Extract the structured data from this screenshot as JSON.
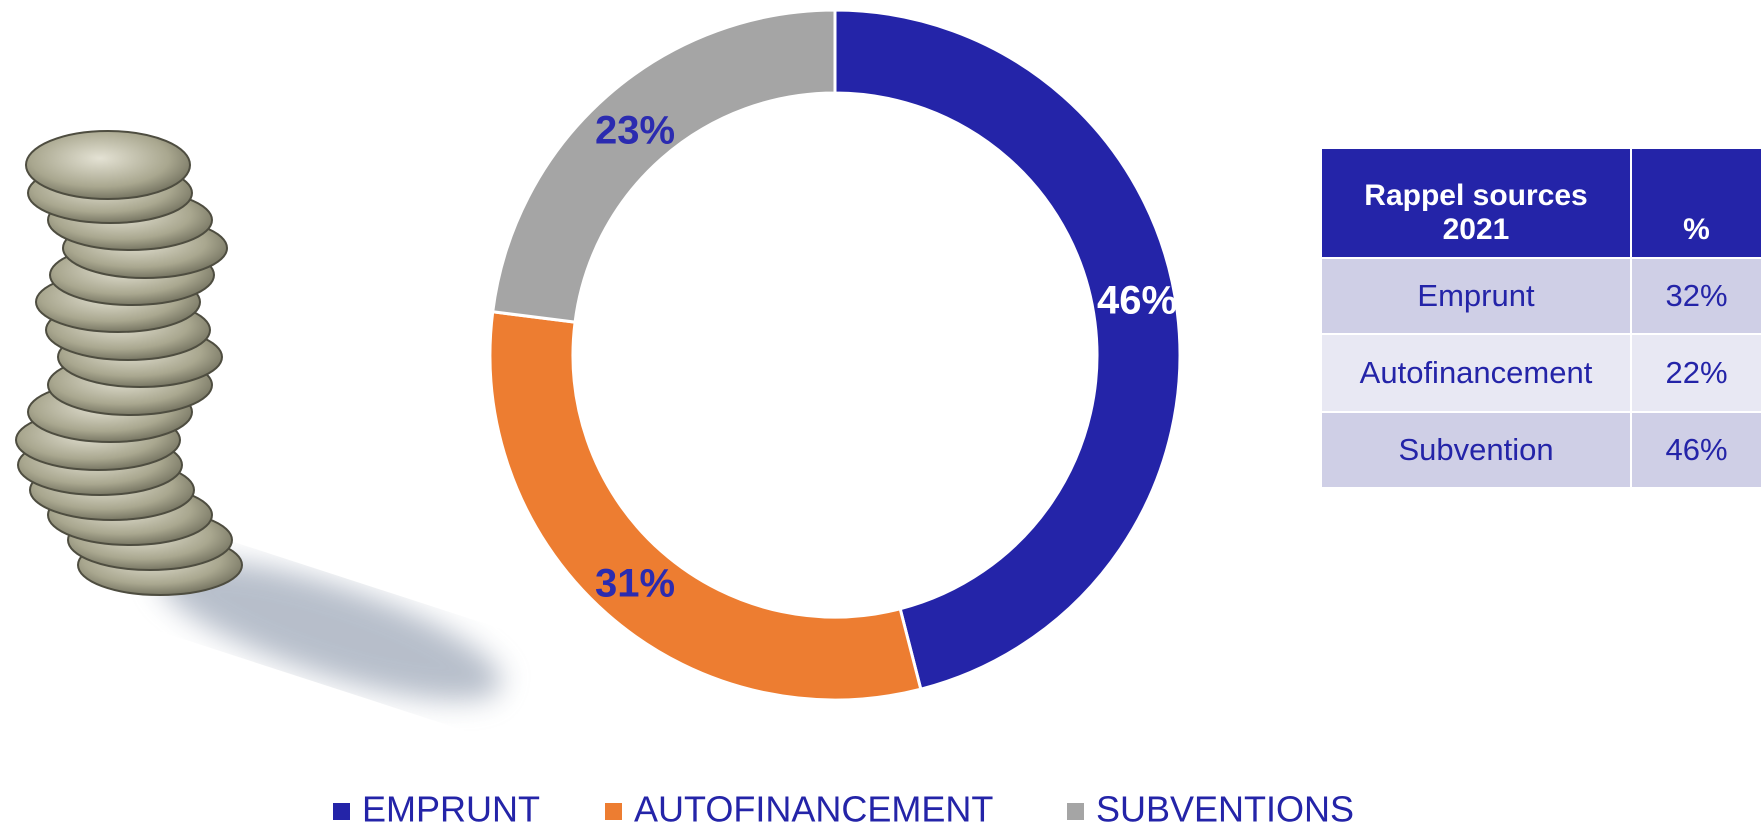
{
  "chart_data": {
    "type": "donut",
    "categories": [
      "EMPRUNT",
      "AUTOFINANCEMENT",
      "SUBVENTIONS"
    ],
    "values": [
      46,
      31,
      23
    ],
    "value_labels": [
      "46%",
      "31%",
      "23%"
    ],
    "colors": [
      "#2424a8",
      "#ed7d31",
      "#a5a5a5"
    ],
    "label_colors": [
      "#ffffff",
      "#2b2bb0",
      "#2b2bb0"
    ],
    "legend": "bottom"
  },
  "table": {
    "headers": [
      "Rappel sources 2021",
      "%"
    ],
    "rows": [
      [
        "Emprunt",
        "32%"
      ],
      [
        "Autofinancement",
        "22%"
      ],
      [
        "Subvention",
        "46%"
      ]
    ]
  }
}
